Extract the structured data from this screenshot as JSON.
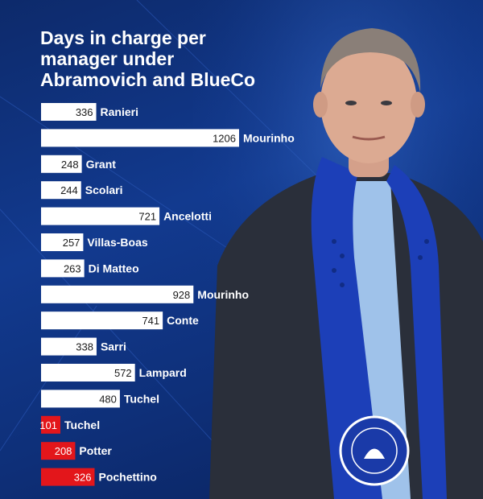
{
  "title_lines": [
    "Days in charge per",
    "manager under",
    "Abramovich and BlueCo"
  ],
  "colors": {
    "abramovich": "#ffffff",
    "blueco": "#e3161b",
    "background": "#123a8f"
  },
  "chart_data": {
    "type": "bar",
    "orientation": "horizontal",
    "title": "Days in charge per manager under Abramovich and BlueCo",
    "categories": [
      "Ranieri",
      "Mourinho",
      "Grant",
      "Scolari",
      "Ancelotti",
      "Villas-Boas",
      "Di Matteo",
      "Mourinho",
      "Conte",
      "Sarri",
      "Lampard",
      "Tuchel",
      "Tuchel",
      "Potter",
      "Pochettino"
    ],
    "values": [
      336,
      1206,
      248,
      244,
      721,
      257,
      263,
      928,
      741,
      338,
      572,
      480,
      101,
      208,
      326
    ],
    "bar_colors": [
      "white",
      "white",
      "white",
      "white",
      "white",
      "white",
      "white",
      "white",
      "white",
      "white",
      "white",
      "white",
      "red",
      "red",
      "red"
    ],
    "xlabel": "",
    "ylabel": "",
    "grid": false
  }
}
